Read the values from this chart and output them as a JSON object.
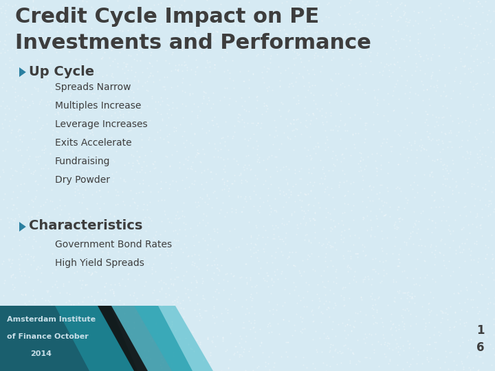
{
  "title_line1": "Credit Cycle Impact on PE",
  "title_line2": "Investments and Performance",
  "title_color": "#3d3d3d",
  "title_fontsize": 22,
  "bg_color": "#d6eaf3",
  "bullet1_header": "Up Cycle",
  "bullet1_items": [
    "Spreads Narrow",
    "Multiples Increase",
    "Leverage Increases",
    "Exits Accelerate",
    "Fundraising",
    "Dry Powder"
  ],
  "bullet2_header": "Characteristics",
  "bullet2_items": [
    "Government Bond Rates",
    "High Yield Spreads"
  ],
  "bullet_arrow_color": "#2a7fa0",
  "bullet_header_fontsize": 14,
  "bullet_item_fontsize": 10,
  "footer_text_line1": "Amsterdam Institute",
  "footer_text_line2": "of Finance October",
  "footer_text_line3": "2014",
  "footer_text_color": "#c8dfe8",
  "page_number_color": "#3d3d3d",
  "diagonal_dark": "#1a5f6e",
  "diagonal_mid": "#1e8a9a",
  "diagonal_light": "#2ab0c0",
  "black_line_color": "#111111"
}
